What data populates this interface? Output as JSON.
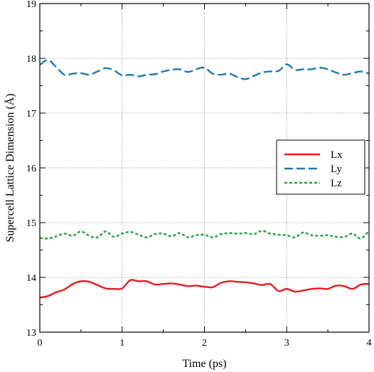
{
  "chart_data": {
    "type": "line",
    "xlabel": "Time (ps)",
    "ylabel": "Supercell Lattice Dimension (Å)",
    "xlim": [
      0,
      4
    ],
    "ylim": [
      13,
      19
    ],
    "xticks": [
      "0",
      "1",
      "2",
      "3",
      "4"
    ],
    "yticks": [
      "13",
      "14",
      "15",
      "16",
      "17",
      "18",
      "19"
    ],
    "grid": true,
    "legend_position": "right-middle",
    "x": [
      0,
      0.1,
      0.2,
      0.3,
      0.4,
      0.5,
      0.6,
      0.7,
      0.8,
      0.9,
      1.0,
      1.1,
      1.2,
      1.3,
      1.4,
      1.5,
      1.6,
      1.7,
      1.8,
      1.9,
      2.0,
      2.1,
      2.2,
      2.3,
      2.4,
      2.5,
      2.6,
      2.7,
      2.8,
      2.9,
      3.0,
      3.1,
      3.2,
      3.3,
      3.4,
      3.5,
      3.6,
      3.7,
      3.8,
      3.9,
      4.0
    ],
    "series": [
      {
        "name": "Lx",
        "color": "#e8191e",
        "dash": "solid",
        "values": [
          13.63,
          13.66,
          13.73,
          13.78,
          13.88,
          13.93,
          13.92,
          13.86,
          13.8,
          13.79,
          13.8,
          13.95,
          13.93,
          13.93,
          13.87,
          13.88,
          13.89,
          13.87,
          13.84,
          13.85,
          13.83,
          13.82,
          13.9,
          13.93,
          13.92,
          13.91,
          13.89,
          13.86,
          13.88,
          13.75,
          13.79,
          13.74,
          13.76,
          13.79,
          13.8,
          13.79,
          13.85,
          13.84,
          13.79,
          13.87,
          13.88
        ]
      },
      {
        "name": "Ly",
        "color": "#1a78b8",
        "dash": "long-dash",
        "values": [
          17.88,
          17.97,
          17.84,
          17.7,
          17.72,
          17.73,
          17.7,
          17.76,
          17.82,
          17.78,
          17.69,
          17.7,
          17.67,
          17.7,
          17.71,
          17.76,
          17.79,
          17.8,
          17.75,
          17.8,
          17.83,
          17.72,
          17.7,
          17.72,
          17.66,
          17.62,
          17.68,
          17.74,
          17.76,
          17.77,
          17.89,
          17.79,
          17.8,
          17.8,
          17.83,
          17.8,
          17.74,
          17.7,
          17.73,
          17.76,
          17.72
        ]
      },
      {
        "name": "Lz",
        "color": "#1fa33a",
        "dash": "short-dash",
        "values": [
          14.72,
          14.71,
          14.75,
          14.8,
          14.76,
          14.84,
          14.76,
          14.73,
          14.84,
          14.74,
          14.8,
          14.83,
          14.78,
          14.73,
          14.79,
          14.8,
          14.75,
          14.81,
          14.73,
          14.77,
          14.78,
          14.73,
          14.79,
          14.81,
          14.8,
          14.81,
          14.79,
          14.85,
          14.8,
          14.78,
          14.77,
          14.73,
          14.82,
          14.77,
          14.76,
          14.77,
          14.74,
          14.74,
          14.8,
          14.71,
          14.85
        ]
      }
    ]
  }
}
